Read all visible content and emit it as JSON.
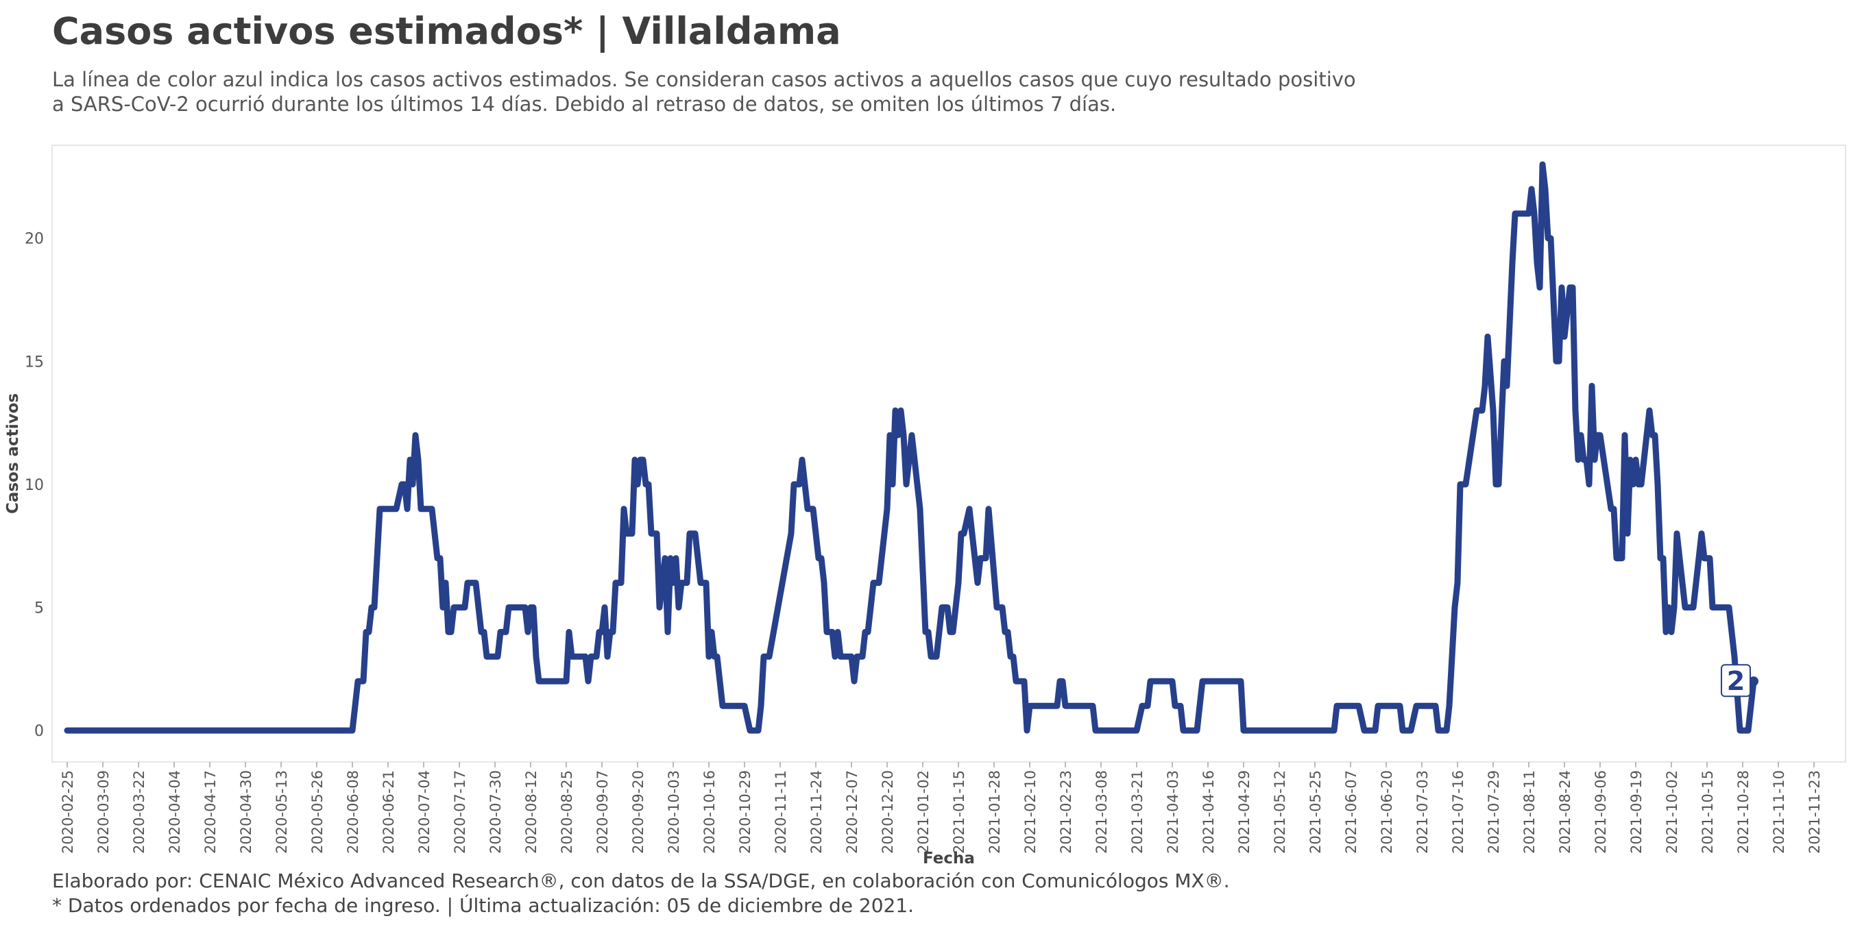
{
  "header": {
    "title": "Casos activos estimados* | Villaldama",
    "subtitle_line1": "La línea de color azul indica los casos activos estimados. Se consideran casos activos a aquellos casos que cuyo resultado positivo",
    "subtitle_line2": "a SARS-CoV-2 ocurrió durante los últimos 14 días. Debido al retraso de datos, se omiten los últimos 7 días."
  },
  "footer": {
    "line1": "Elaborado por: CENAIC México Advanced Research®, con datos de la SSA/DGE, en colaboración con Comunicólogos MX®.",
    "line2": "* Datos ordenados por fecha de ingreso. | Última actualización: 05 de diciembre de 2021."
  },
  "colors": {
    "line": "#27408b",
    "axis_text": "#555555",
    "frame": "#e6e6e6"
  },
  "chart_data": {
    "type": "line",
    "xlabel": "Fecha",
    "ylabel": "Casos activos",
    "x_start": "2020-02-25",
    "x_end": "2021-11-28",
    "ylim": [
      -1,
      23.5
    ],
    "yticks": [
      0,
      5,
      10,
      15,
      20
    ],
    "xticks": [
      "2020-02-25",
      "2020-03-09",
      "2020-03-22",
      "2020-04-04",
      "2020-04-17",
      "2020-04-30",
      "2020-05-13",
      "2020-05-26",
      "2020-06-08",
      "2020-06-21",
      "2020-07-04",
      "2020-07-17",
      "2020-07-30",
      "2020-08-12",
      "2020-08-25",
      "2020-09-07",
      "2020-09-20",
      "2020-10-03",
      "2020-10-16",
      "2020-10-29",
      "2020-11-11",
      "2020-11-24",
      "2020-12-07",
      "2020-12-20",
      "2021-01-02",
      "2021-01-15",
      "2021-01-28",
      "2021-02-10",
      "2021-02-23",
      "2021-03-08",
      "2021-03-21",
      "2021-04-03",
      "2021-04-16",
      "2021-04-29",
      "2021-05-12",
      "2021-05-25",
      "2021-06-07",
      "2021-06-20",
      "2021-07-03",
      "2021-07-16",
      "2021-07-29",
      "2021-08-11",
      "2021-08-24",
      "2021-09-06",
      "2021-09-19",
      "2021-10-02",
      "2021-10-15",
      "2021-10-28",
      "2021-11-10",
      "2021-11-23"
    ],
    "grid": false,
    "last_label": "2",
    "series": [
      {
        "points": [
          [
            "2020-02-25",
            0
          ],
          [
            "2020-06-08",
            0
          ],
          [
            "2020-06-10",
            2
          ],
          [
            "2020-06-12",
            2
          ],
          [
            "2020-06-13",
            4
          ],
          [
            "2020-06-14",
            4
          ],
          [
            "2020-06-15",
            5
          ],
          [
            "2020-06-16",
            5
          ],
          [
            "2020-06-18",
            9
          ],
          [
            "2020-06-24",
            9
          ],
          [
            "2020-06-26",
            10
          ],
          [
            "2020-06-27",
            10
          ],
          [
            "2020-06-28",
            9
          ],
          [
            "2020-06-29",
            11
          ],
          [
            "2020-06-30",
            10
          ],
          [
            "2020-07-01",
            12
          ],
          [
            "2020-07-02",
            11
          ],
          [
            "2020-07-03",
            9
          ],
          [
            "2020-07-07",
            9
          ],
          [
            "2020-07-09",
            7
          ],
          [
            "2020-07-10",
            7
          ],
          [
            "2020-07-11",
            5
          ],
          [
            "2020-07-12",
            6
          ],
          [
            "2020-07-13",
            4
          ],
          [
            "2020-07-14",
            4
          ],
          [
            "2020-07-15",
            5
          ],
          [
            "2020-07-19",
            5
          ],
          [
            "2020-07-20",
            6
          ],
          [
            "2020-07-23",
            6
          ],
          [
            "2020-07-25",
            4
          ],
          [
            "2020-07-26",
            4
          ],
          [
            "2020-07-27",
            3
          ],
          [
            "2020-07-31",
            3
          ],
          [
            "2020-08-01",
            4
          ],
          [
            "2020-08-03",
            4
          ],
          [
            "2020-08-04",
            5
          ],
          [
            "2020-08-10",
            5
          ],
          [
            "2020-08-11",
            4
          ],
          [
            "2020-08-12",
            5
          ],
          [
            "2020-08-13",
            5
          ],
          [
            "2020-08-14",
            3
          ],
          [
            "2020-08-15",
            2
          ],
          [
            "2020-08-25",
            2
          ],
          [
            "2020-08-26",
            4
          ],
          [
            "2020-08-27",
            3
          ],
          [
            "2020-09-01",
            3
          ],
          [
            "2020-09-02",
            2
          ],
          [
            "2020-09-03",
            3
          ],
          [
            "2020-09-05",
            3
          ],
          [
            "2020-09-06",
            4
          ],
          [
            "2020-09-07",
            4
          ],
          [
            "2020-09-08",
            5
          ],
          [
            "2020-09-09",
            3
          ],
          [
            "2020-09-10",
            4
          ],
          [
            "2020-09-11",
            4
          ],
          [
            "2020-09-12",
            6
          ],
          [
            "2020-09-14",
            6
          ],
          [
            "2020-09-15",
            9
          ],
          [
            "2020-09-16",
            8
          ],
          [
            "2020-09-18",
            8
          ],
          [
            "2020-09-19",
            11
          ],
          [
            "2020-09-20",
            10
          ],
          [
            "2020-09-21",
            11
          ],
          [
            "2020-09-22",
            11
          ],
          [
            "2020-09-23",
            10
          ],
          [
            "2020-09-24",
            10
          ],
          [
            "2020-09-25",
            8
          ],
          [
            "2020-09-27",
            8
          ],
          [
            "2020-09-28",
            5
          ],
          [
            "2020-09-29",
            6
          ],
          [
            "2020-09-30",
            7
          ],
          [
            "2020-10-01",
            4
          ],
          [
            "2020-10-02",
            7
          ],
          [
            "2020-10-03",
            6
          ],
          [
            "2020-10-04",
            7
          ],
          [
            "2020-10-05",
            5
          ],
          [
            "2020-10-06",
            6
          ],
          [
            "2020-10-08",
            6
          ],
          [
            "2020-10-09",
            8
          ],
          [
            "2020-10-11",
            8
          ],
          [
            "2020-10-13",
            6
          ],
          [
            "2020-10-15",
            6
          ],
          [
            "2020-10-16",
            3
          ],
          [
            "2020-10-17",
            4
          ],
          [
            "2020-10-18",
            3
          ],
          [
            "2020-10-19",
            3
          ],
          [
            "2020-10-21",
            1
          ],
          [
            "2020-10-29",
            1
          ],
          [
            "2020-10-31",
            0
          ],
          [
            "2020-11-03",
            0
          ],
          [
            "2020-11-04",
            1
          ],
          [
            "2020-11-05",
            3
          ],
          [
            "2020-11-07",
            3
          ],
          [
            "2020-11-15",
            8
          ],
          [
            "2020-11-16",
            10
          ],
          [
            "2020-11-18",
            10
          ],
          [
            "2020-11-19",
            11
          ],
          [
            "2020-11-20",
            10
          ],
          [
            "2020-11-21",
            9
          ],
          [
            "2020-11-23",
            9
          ],
          [
            "2020-11-25",
            7
          ],
          [
            "2020-11-26",
            7
          ],
          [
            "2020-11-27",
            6
          ],
          [
            "2020-11-28",
            4
          ],
          [
            "2020-11-30",
            4
          ],
          [
            "2020-12-01",
            3
          ],
          [
            "2020-12-02",
            4
          ],
          [
            "2020-12-03",
            3
          ],
          [
            "2020-12-07",
            3
          ],
          [
            "2020-12-08",
            2
          ],
          [
            "2020-12-09",
            3
          ],
          [
            "2020-12-11",
            3
          ],
          [
            "2020-12-12",
            4
          ],
          [
            "2020-12-13",
            4
          ],
          [
            "2020-12-15",
            6
          ],
          [
            "2020-12-17",
            6
          ],
          [
            "2020-12-20",
            9
          ],
          [
            "2020-12-21",
            12
          ],
          [
            "2020-12-22",
            10
          ],
          [
            "2020-12-23",
            13
          ],
          [
            "2020-12-24",
            12
          ],
          [
            "2020-12-25",
            13
          ],
          [
            "2020-12-26",
            12
          ],
          [
            "2020-12-27",
            10
          ],
          [
            "2020-12-28",
            11
          ],
          [
            "2020-12-29",
            12
          ],
          [
            "2021-01-01",
            9
          ],
          [
            "2021-01-03",
            4
          ],
          [
            "2021-01-04",
            4
          ],
          [
            "2021-01-05",
            3
          ],
          [
            "2021-01-07",
            3
          ],
          [
            "2021-01-09",
            5
          ],
          [
            "2021-01-11",
            5
          ],
          [
            "2021-01-12",
            4
          ],
          [
            "2021-01-13",
            4
          ],
          [
            "2021-01-15",
            6
          ],
          [
            "2021-01-16",
            8
          ],
          [
            "2021-01-17",
            8
          ],
          [
            "2021-01-19",
            9
          ],
          [
            "2021-01-20",
            8
          ],
          [
            "2021-01-21",
            7
          ],
          [
            "2021-01-22",
            6
          ],
          [
            "2021-01-23",
            7
          ],
          [
            "2021-01-25",
            7
          ],
          [
            "2021-01-26",
            9
          ],
          [
            "2021-01-29",
            5
          ],
          [
            "2021-01-31",
            5
          ],
          [
            "2021-02-01",
            4
          ],
          [
            "2021-02-02",
            4
          ],
          [
            "2021-02-03",
            3
          ],
          [
            "2021-02-04",
            3
          ],
          [
            "2021-02-05",
            2
          ],
          [
            "2021-02-08",
            2
          ],
          [
            "2021-02-09",
            0
          ],
          [
            "2021-02-10",
            1
          ],
          [
            "2021-02-20",
            1
          ],
          [
            "2021-02-21",
            2
          ],
          [
            "2021-02-22",
            2
          ],
          [
            "2021-02-23",
            1
          ],
          [
            "2021-03-05",
            1
          ],
          [
            "2021-03-06",
            0
          ],
          [
            "2021-03-21",
            0
          ],
          [
            "2021-03-23",
            1
          ],
          [
            "2021-03-25",
            1
          ],
          [
            "2021-03-26",
            2
          ],
          [
            "2021-04-03",
            2
          ],
          [
            "2021-04-04",
            1
          ],
          [
            "2021-04-06",
            1
          ],
          [
            "2021-04-07",
            0
          ],
          [
            "2021-04-12",
            0
          ],
          [
            "2021-04-14",
            2
          ],
          [
            "2021-04-28",
            2
          ],
          [
            "2021-04-29",
            0
          ],
          [
            "2021-06-01",
            0
          ],
          [
            "2021-06-02",
            1
          ],
          [
            "2021-06-10",
            1
          ],
          [
            "2021-06-12",
            0
          ],
          [
            "2021-06-16",
            0
          ],
          [
            "2021-06-17",
            1
          ],
          [
            "2021-06-25",
            1
          ],
          [
            "2021-06-26",
            0
          ],
          [
            "2021-06-29",
            0
          ],
          [
            "2021-07-01",
            1
          ],
          [
            "2021-07-08",
            1
          ],
          [
            "2021-07-09",
            0
          ],
          [
            "2021-07-12",
            0
          ],
          [
            "2021-07-13",
            1
          ],
          [
            "2021-07-15",
            5
          ],
          [
            "2021-07-16",
            6
          ],
          [
            "2021-07-17",
            10
          ],
          [
            "2021-07-19",
            10
          ],
          [
            "2021-07-23",
            13
          ],
          [
            "2021-07-25",
            13
          ],
          [
            "2021-07-26",
            14
          ],
          [
            "2021-07-27",
            16
          ],
          [
            "2021-07-29",
            13
          ],
          [
            "2021-07-30",
            10
          ],
          [
            "2021-07-31",
            10
          ],
          [
            "2021-08-02",
            15
          ],
          [
            "2021-08-03",
            14
          ],
          [
            "2021-08-05",
            19
          ],
          [
            "2021-08-06",
            21
          ],
          [
            "2021-08-11",
            21
          ],
          [
            "2021-08-12",
            22
          ],
          [
            "2021-08-13",
            21
          ],
          [
            "2021-08-14",
            19
          ],
          [
            "2021-08-15",
            18
          ],
          [
            "2021-08-16",
            23
          ],
          [
            "2021-08-17",
            22
          ],
          [
            "2021-08-18",
            20
          ],
          [
            "2021-08-19",
            20
          ],
          [
            "2021-08-21",
            15
          ],
          [
            "2021-08-22",
            15
          ],
          [
            "2021-08-23",
            18
          ],
          [
            "2021-08-24",
            16
          ],
          [
            "2021-08-25",
            17
          ],
          [
            "2021-08-26",
            18
          ],
          [
            "2021-08-27",
            18
          ],
          [
            "2021-08-28",
            13
          ],
          [
            "2021-08-29",
            11
          ],
          [
            "2021-08-30",
            12
          ],
          [
            "2021-08-31",
            11
          ],
          [
            "2021-09-01",
            11
          ],
          [
            "2021-09-02",
            10
          ],
          [
            "2021-09-03",
            14
          ],
          [
            "2021-09-04",
            11
          ],
          [
            "2021-09-05",
            12
          ],
          [
            "2021-09-06",
            12
          ],
          [
            "2021-09-10",
            9
          ],
          [
            "2021-09-11",
            9
          ],
          [
            "2021-09-12",
            7
          ],
          [
            "2021-09-14",
            7
          ],
          [
            "2021-09-15",
            12
          ],
          [
            "2021-09-16",
            8
          ],
          [
            "2021-09-17",
            11
          ],
          [
            "2021-09-18",
            10
          ],
          [
            "2021-09-19",
            11
          ],
          [
            "2021-09-20",
            10
          ],
          [
            "2021-09-21",
            10
          ],
          [
            "2021-09-22",
            11
          ],
          [
            "2021-09-24",
            13
          ],
          [
            "2021-09-25",
            12
          ],
          [
            "2021-09-26",
            12
          ],
          [
            "2021-09-27",
            10
          ],
          [
            "2021-09-28",
            7
          ],
          [
            "2021-09-29",
            7
          ],
          [
            "2021-09-30",
            4
          ],
          [
            "2021-10-01",
            5
          ],
          [
            "2021-10-02",
            4
          ],
          [
            "2021-10-03",
            5
          ],
          [
            "2021-10-04",
            8
          ],
          [
            "2021-10-05",
            7
          ],
          [
            "2021-10-06",
            6
          ],
          [
            "2021-10-07",
            5
          ],
          [
            "2021-10-10",
            5
          ],
          [
            "2021-10-11",
            6
          ],
          [
            "2021-10-12",
            7
          ],
          [
            "2021-10-13",
            8
          ],
          [
            "2021-10-14",
            7
          ],
          [
            "2021-10-16",
            7
          ],
          [
            "2021-10-17",
            5
          ],
          [
            "2021-10-23",
            5
          ],
          [
            "2021-10-24",
            4
          ],
          [
            "2021-10-25",
            3
          ],
          [
            "2021-10-27",
            0
          ],
          [
            "2021-10-30",
            0
          ],
          [
            "2021-11-01",
            2
          ]
        ]
      }
    ]
  }
}
